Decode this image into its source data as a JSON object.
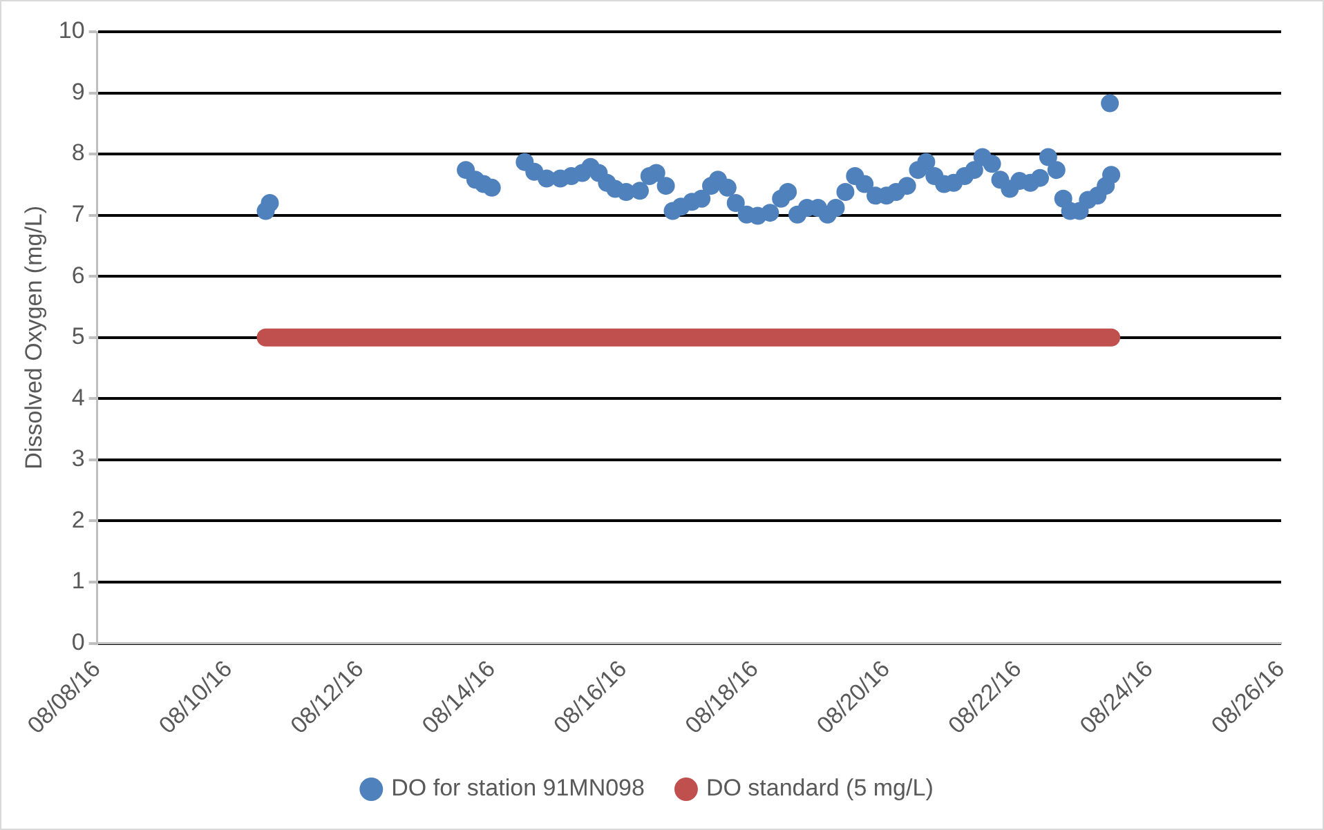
{
  "chart_data": {
    "type": "scatter",
    "ylabel": "Dissolved Oxygen (mg/L)",
    "xlim": [
      "--08-08",
      "--08-26"
    ],
    "xticks": [
      {
        "value": "--08-08",
        "label": "08/08/16"
      },
      {
        "value": "--08-10",
        "label": "08/10/16"
      },
      {
        "value": "--08-12",
        "label": "08/12/16"
      },
      {
        "value": "--08-14",
        "label": "08/14/16"
      },
      {
        "value": "--08-16",
        "label": "08/16/16"
      },
      {
        "value": "--08-18",
        "label": "08/18/16"
      },
      {
        "value": "--08-20",
        "label": "08/20/16"
      },
      {
        "value": "--08-22",
        "label": "08/22/16"
      },
      {
        "value": "--08-24",
        "label": "08/24/16"
      },
      {
        "value": "--08-26",
        "label": "08/26/16"
      }
    ],
    "ylim": [
      0,
      10
    ],
    "yticks": [
      0,
      1,
      2,
      3,
      4,
      5,
      6,
      7,
      8,
      9,
      10
    ],
    "grid": "y",
    "legend": "bottom",
    "series": [
      {
        "name": "DO for station 91MN098",
        "marker": "circle",
        "color": "#4f81bd",
        "x": [
          "--08-10T13:30",
          "--08-10T15:00",
          "--08-13T14:30",
          "--08-13T18:00",
          "--08-13T21:00",
          "--08-14T00:00",
          "--08-14T12:00",
          "--08-14T15:30",
          "--08-14T20:00",
          "--08-15T01:00",
          "--08-15T05:00",
          "--08-15T09:00",
          "--08-15T12:00",
          "--08-15T15:00",
          "--08-15T18:00",
          "--08-15T21:00",
          "--08-16T01:00",
          "--08-16T06:00",
          "--08-16T09:30",
          "--08-16T12:00",
          "--08-16T15:30",
          "--08-16T18:00",
          "--08-16T21:00",
          "--08-17T01:00",
          "--08-17T04:30",
          "--08-17T08:00",
          "--08-17T10:30",
          "--08-17T14:00",
          "--08-17T17:00",
          "--08-17T21:00",
          "--08-18T01:00",
          "--08-18T05:30",
          "--08-18T09:30",
          "--08-18T12:00",
          "--08-18T15:30",
          "--08-18T19:00",
          "--08-18T23:00",
          "--08-19T02:30",
          "--08-19T05:30",
          "--08-19T09:00",
          "--08-19T12:30",
          "--08-19T16:00",
          "--08-19T20:00",
          "--08-20T00:00",
          "--08-20T03:30",
          "--08-20T07:30",
          "--08-20T11:30",
          "--08-20T14:30",
          "--08-20T17:30",
          "--08-20T21:00",
          "--08-21T00:30",
          "--08-21T04:30",
          "--08-21T08:00",
          "--08-21T11:00",
          "--08-21T14:30",
          "--08-21T17:30",
          "--08-21T21:00",
          "--08-22T00:30",
          "--08-22T04:30",
          "--08-22T08:00",
          "--08-22T11:00",
          "--08-22T14:00",
          "--08-22T16:30",
          "--08-22T19:00",
          "--08-22T22:30",
          "--08-23T01:30",
          "--08-23T05:00",
          "--08-23T08:00",
          "--08-23T10:00",
          "--08-23T09:30"
        ],
        "values": [
          7.07,
          7.2,
          7.74,
          7.58,
          7.51,
          7.45,
          7.87,
          7.71,
          7.6,
          7.6,
          7.64,
          7.69,
          7.79,
          7.69,
          7.53,
          7.43,
          7.38,
          7.4,
          7.64,
          7.69,
          7.48,
          7.07,
          7.14,
          7.22,
          7.27,
          7.48,
          7.58,
          7.45,
          7.2,
          7.01,
          6.99,
          7.04,
          7.27,
          7.38,
          7.01,
          7.12,
          7.12,
          7.01,
          7.12,
          7.38,
          7.64,
          7.51,
          7.32,
          7.32,
          7.38,
          7.48,
          7.74,
          7.87,
          7.64,
          7.51,
          7.53,
          7.64,
          7.74,
          7.95,
          7.84,
          7.58,
          7.43,
          7.56,
          7.53,
          7.61,
          7.95,
          7.74,
          7.27,
          7.07,
          7.07,
          7.25,
          7.32,
          7.48,
          7.66,
          8.83
        ]
      },
      {
        "name": "DO standard (5 mg/L)",
        "type": "line",
        "marker": "none",
        "line_style": "solid",
        "color": "#c0504d",
        "x": [
          "--08-10T13:30",
          "--08-23T10:00"
        ],
        "values": [
          5,
          5
        ]
      }
    ]
  }
}
